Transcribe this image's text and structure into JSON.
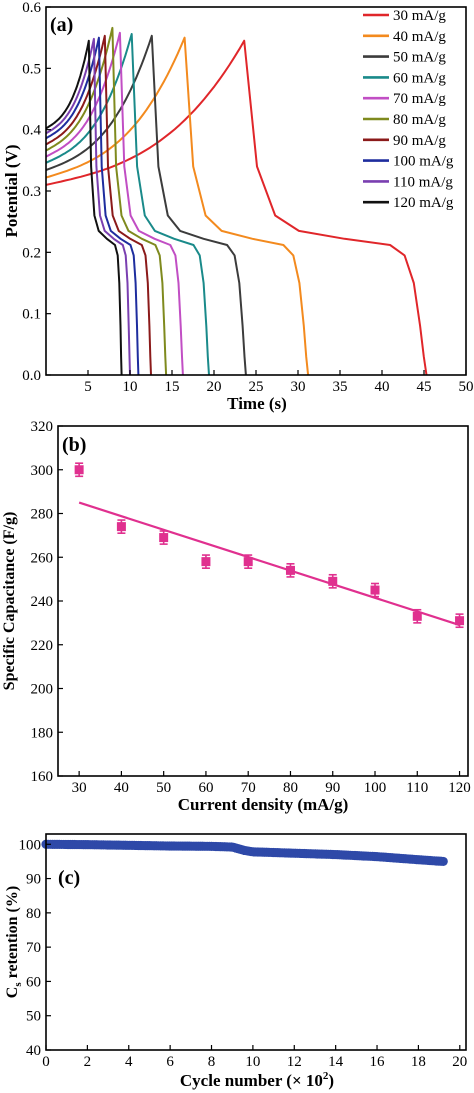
{
  "chart_data": [
    {
      "type": "line",
      "panel_label": "(a)",
      "xlabel": "Time (s)",
      "ylabel": "Potential (V)",
      "xlim": [
        0,
        50
      ],
      "ylim": [
        0,
        0.6
      ],
      "xticks": [
        5,
        10,
        15,
        20,
        25,
        30,
        35,
        40,
        45,
        50
      ],
      "yticks": [
        0.0,
        0.1,
        0.2,
        0.3,
        0.4,
        0.5,
        0.6
      ],
      "legend_position": "top-right",
      "series": [
        {
          "name": "30 mA/g",
          "color": "#e0262a",
          "start_v": 0.31,
          "t_peak": 23.6,
          "peak_v": 0.545,
          "t_end": 45.3
        },
        {
          "name": "40 mA/g",
          "color": "#f38a1e",
          "start_v": 0.322,
          "t_peak": 16.5,
          "peak_v": 0.55,
          "t_end": 31.2
        },
        {
          "name": "50 mA/g",
          "color": "#3c3c3c",
          "start_v": 0.334,
          "t_peak": 12.6,
          "peak_v": 0.553,
          "t_end": 23.8
        },
        {
          "name": "60 mA/g",
          "color": "#1a8a8a",
          "start_v": 0.346,
          "t_peak": 10.2,
          "peak_v": 0.556,
          "t_end": 19.4
        },
        {
          "name": "70 mA/g",
          "color": "#c14ec4",
          "start_v": 0.356,
          "t_peak": 8.8,
          "peak_v": 0.558,
          "t_end": 16.3
        },
        {
          "name": "80 mA/g",
          "color": "#7f8a1e",
          "start_v": 0.366,
          "t_peak": 7.9,
          "peak_v": 0.566,
          "t_end": 14.3
        },
        {
          "name": "90 mA/g",
          "color": "#8b1a1a",
          "start_v": 0.376,
          "t_peak": 7.0,
          "peak_v": 0.553,
          "t_end": 12.5
        },
        {
          "name": "100 mA/g",
          "color": "#1e2d9e",
          "start_v": 0.386,
          "t_peak": 6.3,
          "peak_v": 0.55,
          "t_end": 11.0
        },
        {
          "name": "110 mA/g",
          "color": "#7a3fb0",
          "start_v": 0.394,
          "t_peak": 5.7,
          "peak_v": 0.548,
          "t_end": 10.0
        },
        {
          "name": "120 mA/g",
          "color": "#111111",
          "start_v": 0.402,
          "t_peak": 5.1,
          "peak_v": 0.545,
          "t_end": 9.0
        }
      ]
    },
    {
      "type": "scatter",
      "panel_label": "(b)",
      "xlabel": "Current density (mA/g)",
      "ylabel": "Specific Capacitance (F/g)",
      "xlim": [
        25,
        122
      ],
      "ylim": [
        160,
        320
      ],
      "xticks": [
        30,
        40,
        50,
        60,
        70,
        80,
        90,
        100,
        110,
        120
      ],
      "yticks": [
        160,
        180,
        200,
        220,
        240,
        260,
        280,
        300,
        320
      ],
      "marker_color": "#e0308f",
      "fit_color": "#e0308f",
      "x": [
        30,
        40,
        50,
        60,
        70,
        80,
        90,
        100,
        110,
        120
      ],
      "y": [
        300,
        274,
        269,
        258,
        258,
        254,
        249,
        245,
        233,
        231
      ],
      "error": [
        3,
        3,
        3,
        3,
        3,
        3,
        3,
        3,
        3,
        3
      ],
      "fit_line": {
        "x": [
          30,
          120
        ],
        "y": [
          285,
          229
        ]
      }
    },
    {
      "type": "scatter",
      "panel_label": "(c)",
      "xlabel": "Cycle number (× 10²)",
      "ylabel": "Cs retention (%)",
      "ylabel_main": "C",
      "ylabel_sub": "s",
      "ylabel_rest": " retention (%)",
      "xlim": [
        0,
        20.3
      ],
      "ylim": [
        40,
        103
      ],
      "xticks": [
        0,
        2,
        4,
        6,
        8,
        10,
        12,
        14,
        16,
        18,
        20
      ],
      "yticks": [
        40,
        50,
        60,
        70,
        80,
        90,
        100
      ],
      "marker_color": "#2e49a8",
      "x": [
        0,
        2,
        4,
        6,
        8,
        9,
        9.6,
        10,
        12,
        14,
        16,
        18,
        19.2
      ],
      "y": [
        100,
        99.9,
        99.7,
        99.5,
        99.4,
        99.2,
        98.2,
        97.8,
        97.4,
        97.0,
        96.4,
        95.5,
        95.0
      ]
    }
  ]
}
